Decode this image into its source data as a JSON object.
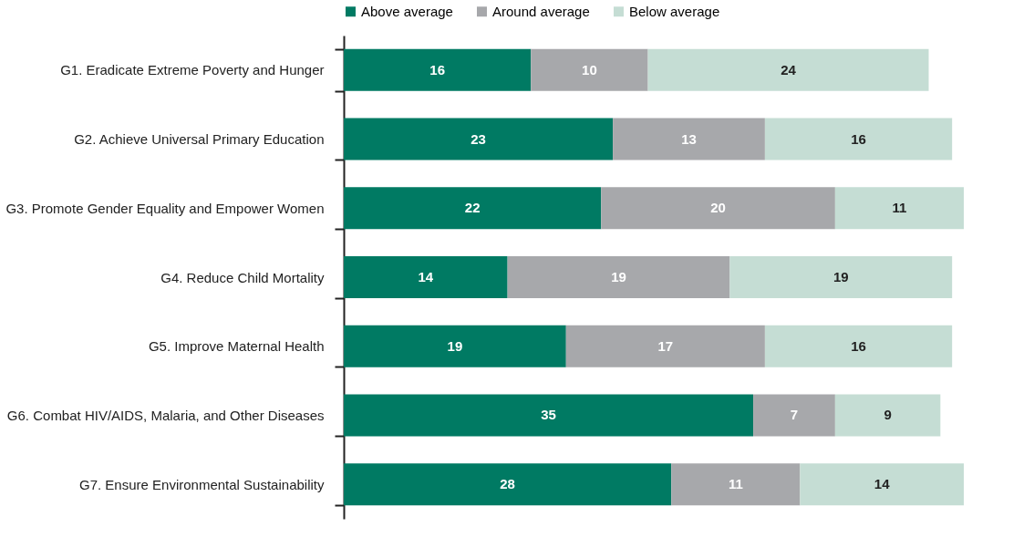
{
  "chart_data": {
    "type": "bar",
    "orientation": "horizontal",
    "stacked": true,
    "data_labels": true,
    "legend": "top",
    "grid": false,
    "tick_labels": "y",
    "categories": [
      "G1. Eradicate Extreme Poverty and Hunger",
      "G2. Achieve Universal Primary Education",
      "G3. Promote Gender Equality and Empower Women",
      "G4. Reduce Child Mortality",
      "G5. Improve Maternal Health",
      "G6. Combat HIV/AIDS, Malaria, and Other Diseases",
      "G7. Ensure Environmental Sustainability"
    ],
    "series": [
      {
        "name": "Above average",
        "color": "#007a63",
        "values": [
          16,
          23,
          22,
          14,
          19,
          35,
          28
        ]
      },
      {
        "name": "Around average",
        "color": "#a7a8ab",
        "values": [
          10,
          13,
          20,
          19,
          17,
          7,
          11
        ]
      },
      {
        "name": "Below average",
        "color": "#c5ddd4",
        "values": [
          24,
          16,
          11,
          19,
          16,
          9,
          14
        ]
      }
    ]
  }
}
